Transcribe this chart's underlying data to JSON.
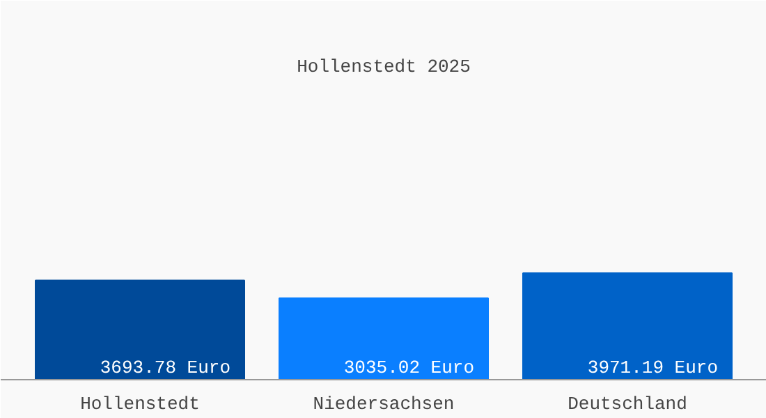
{
  "chart_data": {
    "type": "bar",
    "title": "Hollenstedt 2025",
    "categories": [
      "Hollenstedt",
      "Niedersachsen",
      "Deutschland"
    ],
    "values": [
      3693.78,
      3035.02,
      3971.19
    ],
    "colors": [
      "#004a99",
      "#0a7fff",
      "#0062c8"
    ],
    "value_labels": [
      "3693.78 Euro",
      "3035.02 Euro",
      "3971.19 Euro"
    ],
    "ylim": [
      0,
      11000
    ],
    "grid": false
  }
}
